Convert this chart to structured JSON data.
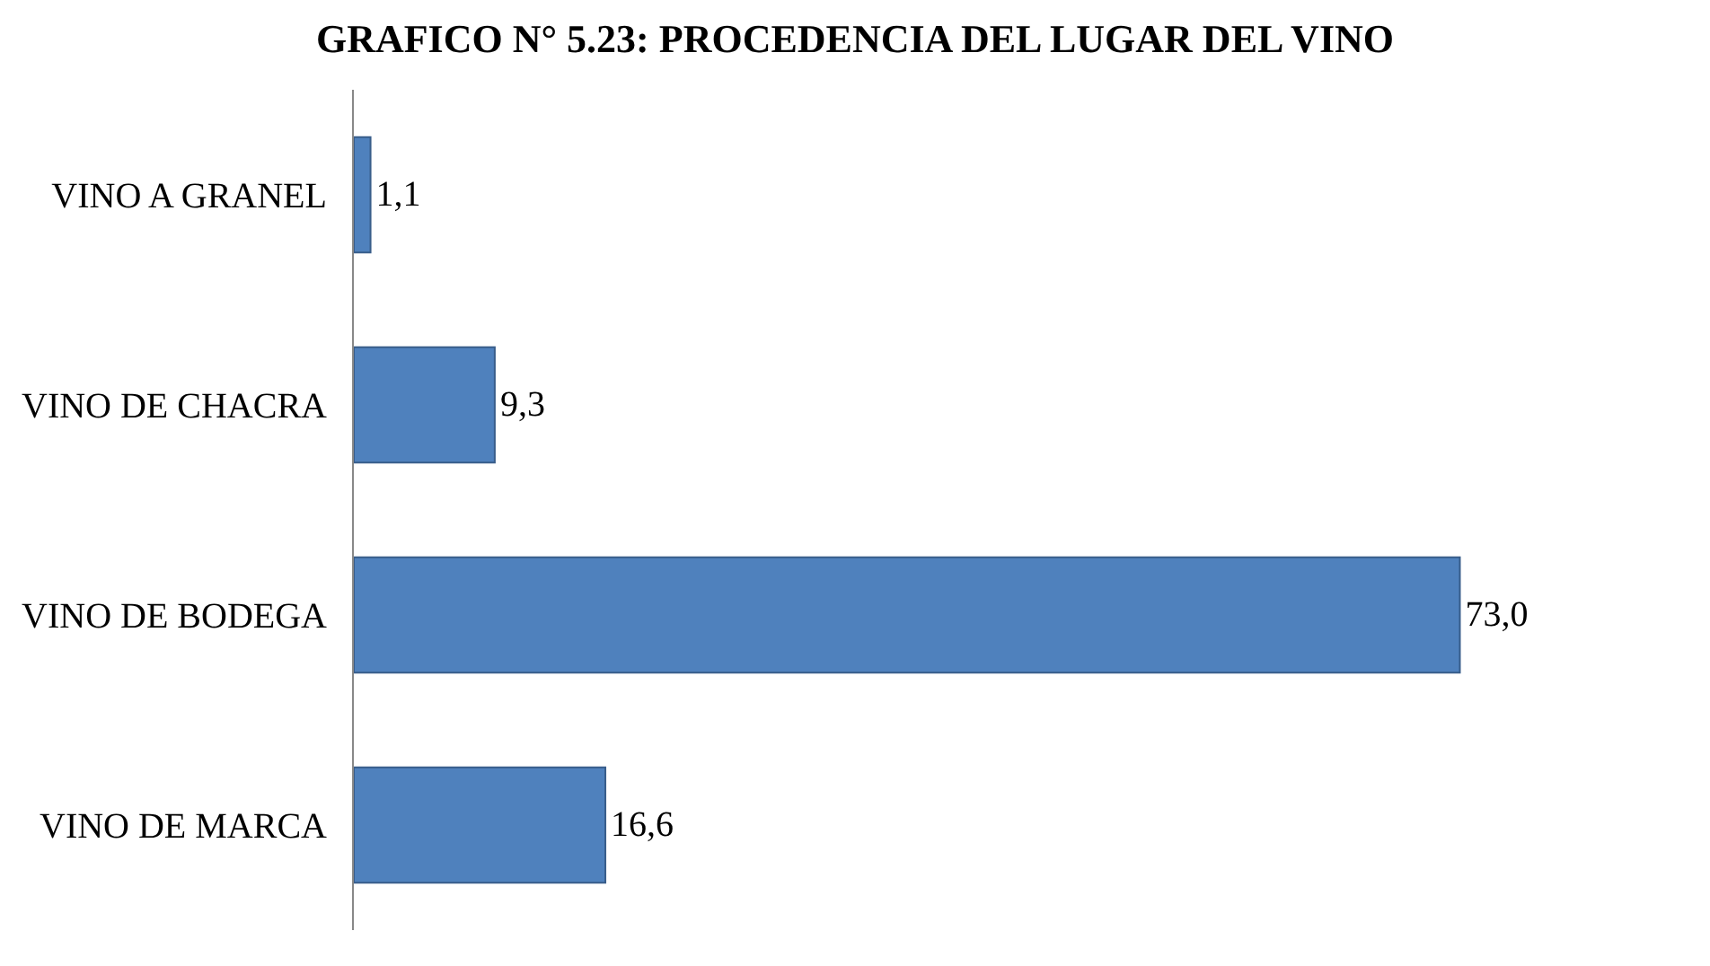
{
  "chart_data": {
    "type": "bar",
    "orientation": "horizontal",
    "title": "GRAFICO N° 5.23: PROCEDENCIA DEL LUGAR DEL VINO",
    "categories": [
      "VINO A GRANEL",
      "VINO DE CHACRA",
      "VINO DE BODEGA",
      "VINO DE MARCA"
    ],
    "values": [
      1.1,
      9.3,
      73.0,
      16.6
    ],
    "value_labels": [
      "1,1",
      "9,3",
      "73,0",
      "16,6"
    ],
    "color": "#4f81bd",
    "legend": false
  }
}
